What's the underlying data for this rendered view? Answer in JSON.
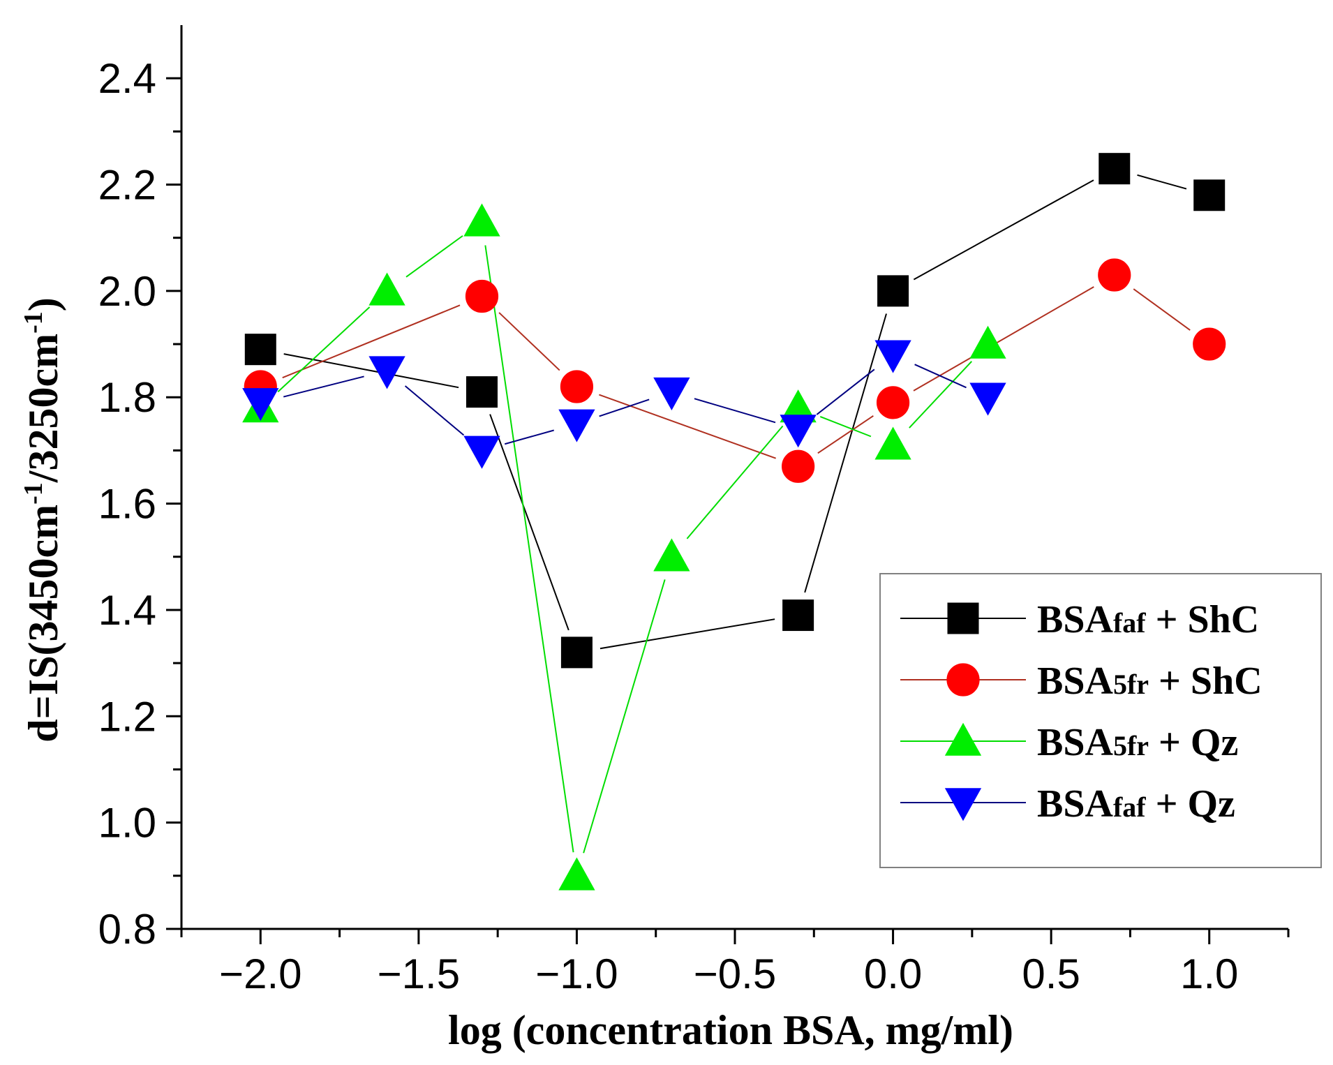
{
  "chart_data": {
    "type": "line",
    "title": "",
    "xlabel": "log (concentration BSA, mg/ml)",
    "ylabel": {
      "prefix": "d=IS(3450cm",
      "sup1": "-1",
      "mid": "/3250cm",
      "sup2": "-1",
      "suffix": ")"
    },
    "xlim": [
      -2.25,
      1.25
    ],
    "ylim": [
      0.8,
      2.5
    ],
    "x_ticks": [
      -2.0,
      -1.5,
      -1.0,
      -0.5,
      0.0,
      0.5,
      1.0
    ],
    "x_tick_labels": [
      "−2.0",
      "−1.5",
      "−1.0",
      "−0.5",
      "0.0",
      "0.5",
      "1.0"
    ],
    "y_ticks": [
      0.8,
      1.0,
      1.2,
      1.4,
      1.6,
      1.8,
      2.0,
      2.2,
      2.4
    ],
    "y_tick_labels": [
      "0.8",
      "1.0",
      "1.2",
      "1.4",
      "1.6",
      "1.8",
      "2.0",
      "2.2",
      "2.4"
    ],
    "grid": false,
    "legend_position": "right",
    "series": [
      {
        "name": "BSAfaf + ShC",
        "name_base": "BSA",
        "name_sub": "faf",
        "name_rest": " + ShC",
        "marker": "square",
        "marker_color": "#000000",
        "line_color": "#000000",
        "x": [
          -2.0,
          -1.3,
          -1.0,
          -0.3,
          0.0,
          0.7,
          1.0
        ],
        "y": [
          1.89,
          1.81,
          1.32,
          1.39,
          2.0,
          2.23,
          2.18
        ]
      },
      {
        "name": "BSA5fr + ShC",
        "name_base": "BSA",
        "name_sub": "5fr",
        "name_rest": " + ShC",
        "marker": "circle",
        "marker_color": "#ff0000",
        "line_color": "#b03020",
        "x": [
          -2.0,
          -1.3,
          -1.0,
          -0.3,
          0.0,
          0.7,
          1.0
        ],
        "y": [
          1.82,
          1.99,
          1.82,
          1.67,
          1.79,
          2.03,
          1.9
        ]
      },
      {
        "name": "BSA5fr + Qz",
        "name_base": "BSA",
        "name_sub": "5fr",
        "name_rest": " + Qz",
        "marker": "triangle-up",
        "marker_color": "#00ee00",
        "line_color": "#00dd00",
        "x": [
          -2.0,
          -1.6,
          -1.3,
          -1.0,
          -0.7,
          -0.3,
          0.0,
          0.3
        ],
        "y": [
          1.78,
          2.0,
          2.13,
          0.9,
          1.5,
          1.78,
          1.71,
          1.9
        ]
      },
      {
        "name": "BSAfaf + Qz",
        "name_base": "BSA",
        "name_sub": "faf",
        "name_rest": " + Qz",
        "marker": "triangle-down",
        "marker_color": "#0000ff",
        "line_color": "#000080",
        "x": [
          -2.0,
          -1.6,
          -1.3,
          -1.0,
          -0.7,
          -0.3,
          0.0,
          0.3
        ],
        "y": [
          1.79,
          1.85,
          1.7,
          1.75,
          1.81,
          1.74,
          1.88,
          1.8
        ]
      }
    ]
  }
}
